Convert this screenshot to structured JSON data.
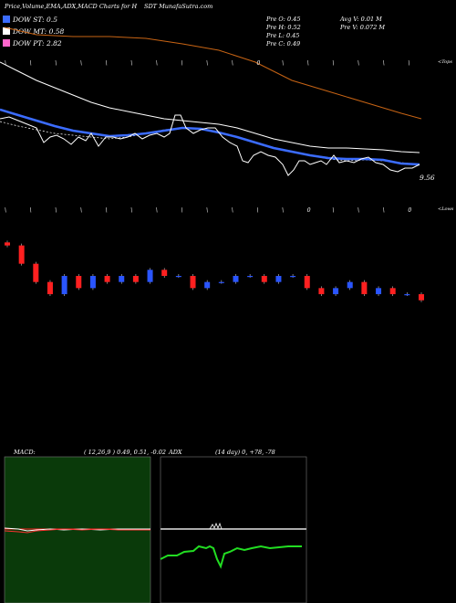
{
  "header": {
    "title": "Price,Volume,EMA,ADX,MACD Charts for H",
    "site": "SDT MunafaSutra.com"
  },
  "legend": [
    {
      "label": "DOW ST: 0.5",
      "color": "#3b6cff"
    },
    {
      "label": "DOW MT: 0.58",
      "color": "#ffffff"
    },
    {
      "label": "DOW PT: 2.82",
      "color": "#ff66cc"
    }
  ],
  "info": {
    "prev_open": "Pre  O: 0.45",
    "prev_high": "Pre  H: 0.52",
    "prev_low": "Pre  L: 0.45",
    "prev_close": "Pre  C: 0.49",
    "avg_vol": "Avg V: 0.01 M",
    "prev_vol": "Pre  V: 0.072  M"
  },
  "price_label": "9.56",
  "tops_label": "<Tops",
  "lows_label": "<Lows",
  "tops_marks": [
    "\\",
    "\\",
    "\\",
    "\\",
    "\\",
    "\\",
    "\\",
    "\\",
    "\\",
    "\\",
    "0",
    "\\",
    "\\",
    "\\",
    "\\",
    "\\",
    "\\"
  ],
  "lows_marks": [
    "\\",
    "\\",
    "\\",
    "\\",
    "\\",
    "\\",
    "\\",
    "\\",
    "\\",
    "\\",
    "\\",
    "\\",
    "0",
    "\\",
    "\\",
    "\\",
    "0"
  ],
  "macd_panel": {
    "label": "MACD:",
    "values": "( 12,26,9 ) 0.49,  0.51, -0.02"
  },
  "adx_panel": {
    "label": "ADX",
    "values": "(14  day) 0, +78, -78"
  },
  "chart_data": {
    "type": "line",
    "series": [
      {
        "values": [
          0.55,
          0.52,
          0.49,
          0.47,
          0.5,
          0.48,
          0.5,
          0.49,
          0.5,
          0.49,
          0.51,
          0.5,
          0.5,
          0.48,
          0.49,
          0.49,
          0.5,
          0.5,
          0.49,
          0.5,
          0.5,
          0.48,
          0.47,
          0.48,
          0.49,
          0.47,
          0.48,
          0.47,
          0.47,
          0.46
        ]
      }
    ],
    "colors": {
      "price": "#ffffff",
      "ema_short": "#3b6cff",
      "ema_mid": "#ffffff",
      "ema_long": "#c86414",
      "candle_up": "#2a55ff",
      "candle_down": "#ff2020",
      "macd_bg": "#0a3a0a",
      "adx_plus": "#22dd22",
      "adx_minus": "#ff3030"
    }
  }
}
